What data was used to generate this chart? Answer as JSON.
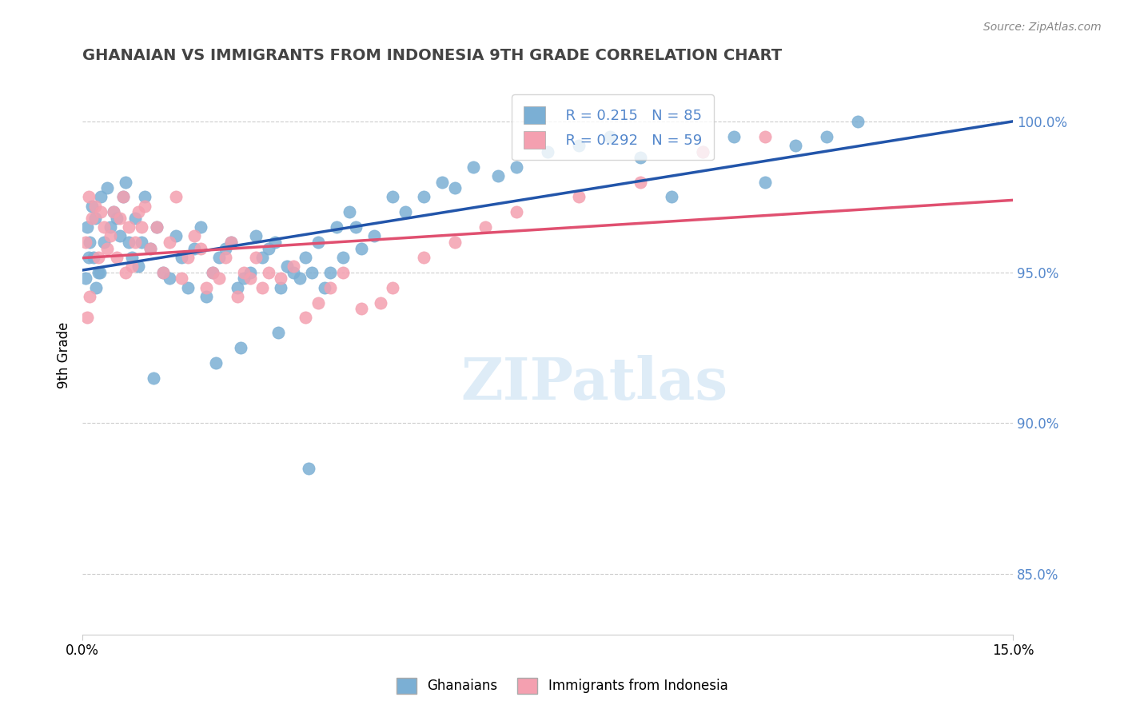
{
  "title": "GHANAIAN VS IMMIGRANTS FROM INDONESIA 9TH GRADE CORRELATION CHART",
  "source": "Source: ZipAtlas.com",
  "xlabel_ticks": [
    "0.0%",
    "15.0%"
  ],
  "ylabel_label": "9th Grade",
  "ylabel_ticks": [
    85.0,
    90.0,
    95.0,
    100.0
  ],
  "xmin": 0.0,
  "xmax": 15.0,
  "ymin": 83.0,
  "ymax": 101.5,
  "legend_labels": [
    "Ghanaians",
    "Immigrants from Indonesia"
  ],
  "blue_R": 0.215,
  "blue_N": 85,
  "pink_R": 0.292,
  "pink_N": 59,
  "blue_color": "#7bafd4",
  "pink_color": "#f4a0b0",
  "blue_line_color": "#2255aa",
  "pink_line_color": "#e05070",
  "watermark": "ZIPatlas",
  "title_color": "#444444",
  "axis_color": "#5588cc",
  "blue_scatter_x": [
    0.1,
    0.15,
    0.2,
    0.25,
    0.3,
    0.35,
    0.4,
    0.45,
    0.5,
    0.55,
    0.6,
    0.65,
    0.7,
    0.75,
    0.8,
    0.85,
    0.9,
    0.95,
    1.0,
    1.1,
    1.2,
    1.3,
    1.4,
    1.5,
    1.6,
    1.7,
    1.8,
    1.9,
    2.0,
    2.1,
    2.2,
    2.3,
    2.4,
    2.5,
    2.6,
    2.7,
    2.8,
    2.9,
    3.0,
    3.1,
    3.2,
    3.3,
    3.4,
    3.5,
    3.6,
    3.7,
    3.8,
    3.9,
    4.0,
    4.1,
    4.2,
    4.3,
    4.4,
    4.5,
    4.7,
    5.0,
    5.2,
    5.5,
    5.8,
    6.0,
    6.3,
    6.7,
    7.0,
    7.5,
    8.0,
    8.5,
    9.0,
    9.5,
    10.0,
    10.5,
    11.0,
    11.5,
    12.0,
    12.5,
    0.05,
    0.08,
    0.12,
    0.18,
    0.22,
    0.28,
    1.15,
    2.15,
    2.55,
    3.15,
    3.65
  ],
  "blue_scatter_y": [
    95.5,
    97.2,
    96.8,
    95.0,
    97.5,
    96.0,
    97.8,
    96.5,
    97.0,
    96.8,
    96.2,
    97.5,
    98.0,
    96.0,
    95.5,
    96.8,
    95.2,
    96.0,
    97.5,
    95.8,
    96.5,
    95.0,
    94.8,
    96.2,
    95.5,
    94.5,
    95.8,
    96.5,
    94.2,
    95.0,
    95.5,
    95.8,
    96.0,
    94.5,
    94.8,
    95.0,
    96.2,
    95.5,
    95.8,
    96.0,
    94.5,
    95.2,
    95.0,
    94.8,
    95.5,
    95.0,
    96.0,
    94.5,
    95.0,
    96.5,
    95.5,
    97.0,
    96.5,
    95.8,
    96.2,
    97.5,
    97.0,
    97.5,
    98.0,
    97.8,
    98.5,
    98.2,
    98.5,
    99.0,
    99.2,
    99.5,
    98.8,
    97.5,
    99.0,
    99.5,
    98.0,
    99.2,
    99.5,
    100.0,
    94.8,
    96.5,
    96.0,
    95.5,
    94.5,
    95.0,
    91.5,
    92.0,
    92.5,
    93.0,
    88.5
  ],
  "pink_scatter_x": [
    0.05,
    0.1,
    0.15,
    0.2,
    0.25,
    0.3,
    0.35,
    0.4,
    0.45,
    0.5,
    0.55,
    0.6,
    0.65,
    0.7,
    0.75,
    0.8,
    0.85,
    0.9,
    0.95,
    1.0,
    1.1,
    1.2,
    1.3,
    1.4,
    1.5,
    1.6,
    1.7,
    1.8,
    1.9,
    2.0,
    2.1,
    2.2,
    2.3,
    2.4,
    2.5,
    2.6,
    2.7,
    2.8,
    2.9,
    3.0,
    3.2,
    3.4,
    3.6,
    3.8,
    4.0,
    4.2,
    4.5,
    4.8,
    5.0,
    5.5,
    6.0,
    6.5,
    7.0,
    8.0,
    9.0,
    10.0,
    11.0,
    0.08,
    0.12
  ],
  "pink_scatter_y": [
    96.0,
    97.5,
    96.8,
    97.2,
    95.5,
    97.0,
    96.5,
    95.8,
    96.2,
    97.0,
    95.5,
    96.8,
    97.5,
    95.0,
    96.5,
    95.2,
    96.0,
    97.0,
    96.5,
    97.2,
    95.8,
    96.5,
    95.0,
    96.0,
    97.5,
    94.8,
    95.5,
    96.2,
    95.8,
    94.5,
    95.0,
    94.8,
    95.5,
    96.0,
    94.2,
    95.0,
    94.8,
    95.5,
    94.5,
    95.0,
    94.8,
    95.2,
    93.5,
    94.0,
    94.5,
    95.0,
    93.8,
    94.0,
    94.5,
    95.5,
    96.0,
    96.5,
    97.0,
    97.5,
    98.0,
    99.0,
    99.5,
    93.5,
    94.2
  ]
}
